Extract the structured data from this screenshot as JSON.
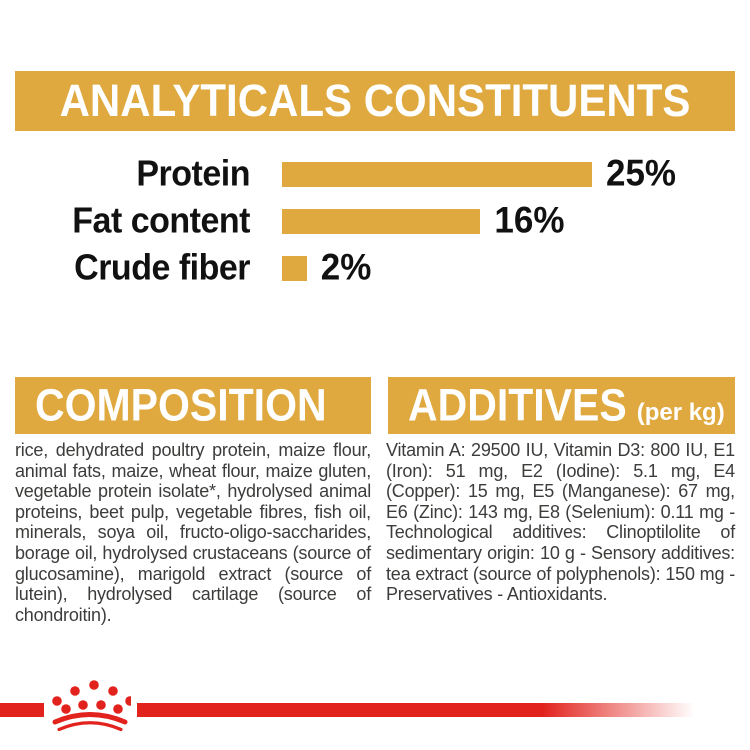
{
  "banner": {
    "title": "ANALYTICALS CONSTITUENTS"
  },
  "chart_data": {
    "type": "bar",
    "orientation": "horizontal",
    "categories": [
      "Protein",
      "Fat content",
      "Crude fiber"
    ],
    "values": [
      25,
      16,
      2
    ],
    "unit": "%",
    "value_labels": [
      "25%",
      "16%",
      "2%"
    ],
    "xlim": [
      0,
      25
    ],
    "bar_color": "#DFA93F",
    "grid": false,
    "legend": false
  },
  "composition": {
    "title": "COMPOSITION",
    "body": "rice, dehydrated poultry protein, maize flour, animal fats, maize, wheat flour, maize gluten, vegetable protein isolate*, hydrolysed animal proteins, beet pulp, vegetable fibres, fish oil, minerals, soya oil, fructo-oligo-saccharides, borage oil, hydrolysed crustaceans (source of glucosamine), marigold extract (source of lutein), hydrolysed cartilage (source of chondroitin)."
  },
  "additives": {
    "title": "ADDITIVES",
    "title_suffix": "(per kg)",
    "body": "Vitamin A: 29500 IU, Vitamin D3: 800 IU, E1 (Iron): 51 mg, E2 (Iodine): 5.1 mg, E4 (Copper): 15 mg, E5 (Manganese): 67 mg, E6 (Zinc): 143 mg, E8 (Selenium): 0.11 mg - Technological additives: Clinoptilolite of sedimentary origin: 10 g - Sensory additives: tea extract (source of polyphenols): 150 mg - Preservatives - Antioxidants."
  },
  "footer": {
    "logo": "royal-canin-crown"
  },
  "colors": {
    "gold": "#DFA93F",
    "red": "#E2231D",
    "text_dark": "#3C3C3B",
    "label_black": "#111111"
  }
}
